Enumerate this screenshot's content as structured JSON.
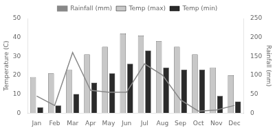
{
  "chart_data": {
    "type": "bar",
    "categories": [
      "Jan",
      "Feb",
      "Mar",
      "Apr",
      "May",
      "Jun",
      "Jul",
      "Aug",
      "Sep",
      "Oct",
      "Nov",
      "Dec"
    ],
    "series": [
      {
        "name": "Temp (max)",
        "color": "#c8c8c8",
        "values": [
          19,
          21,
          23,
          31,
          35,
          42,
          41,
          38,
          35,
          31,
          24,
          20
        ]
      },
      {
        "name": "Temp (min)",
        "color": "#2a2a2a",
        "values": [
          3,
          4,
          10,
          16,
          21,
          26,
          33,
          24,
          23,
          23,
          9,
          6
        ]
      },
      {
        "name": "Rainfall (mm)",
        "color": "#888888",
        "type": "line",
        "axis": "y2",
        "values": [
          45,
          20,
          160,
          60,
          55,
          55,
          130,
          100,
          35,
          5,
          8,
          20
        ]
      }
    ],
    "ylabel": "Temperature (C)",
    "y2label": "Rainfall (mm)",
    "ylim": [
      0,
      50
    ],
    "yticks": [
      0,
      10,
      20,
      30,
      40,
      50
    ],
    "y2lim": [
      0,
      250
    ],
    "y2ticks": [
      0,
      50,
      100,
      150,
      200,
      250
    ],
    "legend": "top",
    "grid": false
  }
}
